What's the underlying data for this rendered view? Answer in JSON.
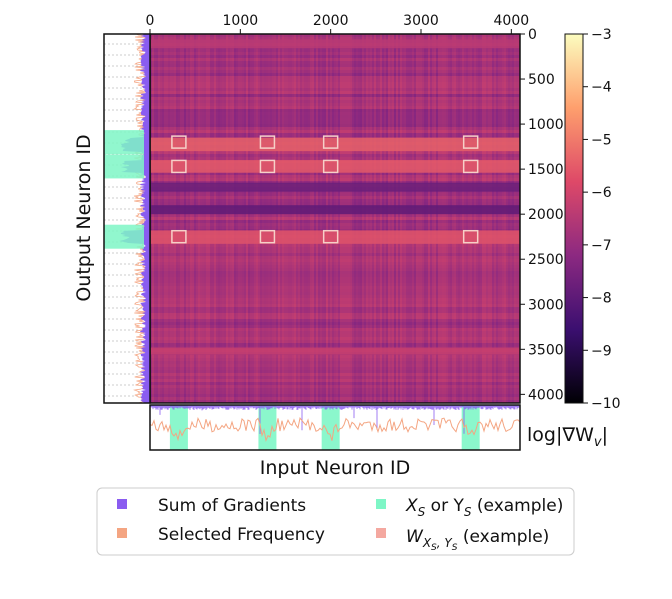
{
  "chart_data": {
    "type": "heatmap",
    "xlabel": "Input Neuron ID",
    "ylabel": "Output Neuron ID",
    "colorbar_label": "log|∇W",
    "colorbar_label_sub": "v",
    "colorbar_label_end": "|",
    "x_ticks": [
      0,
      1000,
      2000,
      3000,
      4000
    ],
    "y_ticks": [
      0,
      500,
      1000,
      1500,
      2000,
      2500,
      3000,
      3500,
      4000
    ],
    "x_range": [
      0,
      4096
    ],
    "y_range": [
      0,
      4096
    ],
    "colorbar_ticks": [
      -3,
      -4,
      -5,
      -6,
      -7,
      -8,
      -9,
      -10
    ],
    "colorbar_range": [
      -10,
      -3
    ],
    "colormap": [
      "#000004",
      "#3b0f70",
      "#8c2981",
      "#de4968",
      "#fe9f6d",
      "#fcfdbf"
    ],
    "highlight_rows": [
      1200,
      1470,
      2250
    ],
    "highlight_cols": [
      320,
      1300,
      2000,
      3550
    ],
    "row_bands": [
      {
        "y0": 1150,
        "y1": 1300,
        "value": -5.4
      },
      {
        "y0": 1400,
        "y1": 1540,
        "value": -5.5
      },
      {
        "y0": 1650,
        "y1": 1750,
        "value": -7.8
      },
      {
        "y0": 1900,
        "y1": 2000,
        "value": -8.0
      },
      {
        "y0": 2180,
        "y1": 2330,
        "value": -5.6
      },
      {
        "y0": 60,
        "y1": 160,
        "value": -6.4
      },
      {
        "y0": 3480,
        "y1": 3560,
        "value": -6.2
      }
    ],
    "legend": [
      {
        "label": "Sum of Gradients",
        "color": "#8a5cf0"
      },
      {
        "label": "Selected Frequency",
        "color": "#f4a582"
      },
      {
        "label": "X",
        "sub": "S",
        "mid": " or Y",
        "sub2": "S",
        "tail": " (example)",
        "color": "#7ef6c6"
      },
      {
        "label": "W",
        "sub": "X",
        "subsub": "S",
        "sub2": ", Y",
        "subsub2": "S",
        "tail": " (example)",
        "color": "#f4a8a0"
      }
    ]
  }
}
